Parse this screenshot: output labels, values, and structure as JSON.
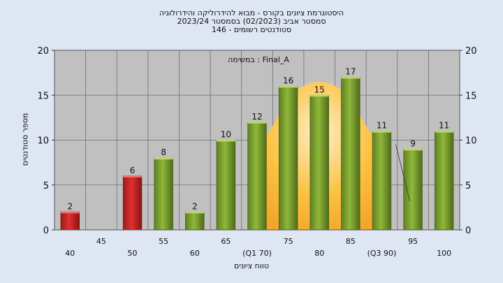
{
  "titles": {
    "line1": "היסטוגרמת ציונים בקורס - מבוא להידרוליקה והידרולוגיה",
    "line2": "2023/24 סמסטר אביב (02/2023) בסמסטר",
    "line3": "146 - סטודנטים רשומים"
  },
  "chart_data": {
    "type": "bar",
    "annotation": "במשימה : Final_A",
    "xlabel": "טווח ציונים",
    "ylabel": "מספר סטודנטים",
    "ylim": [
      0,
      20
    ],
    "yticks": [
      0,
      5,
      10,
      15,
      20
    ],
    "grid": true,
    "categories": [
      "40",
      "45",
      "50",
      "55",
      "60",
      "65",
      "70",
      "75",
      "80",
      "85",
      "90",
      "95",
      "100"
    ],
    "tick_labels": [
      "40",
      "45",
      "50",
      "55",
      "60",
      "65",
      "(Q1 70)",
      "75",
      "80",
      "85",
      "(Q3 90)",
      "95",
      "100"
    ],
    "values": [
      2,
      0,
      6,
      8,
      2,
      10,
      12,
      16,
      15,
      17,
      11,
      9,
      11
    ],
    "fail_categories": [
      "40",
      "45",
      "50"
    ],
    "colors": {
      "fail": "#e03030",
      "pass": "#8fb83a",
      "plot_bg": "#c0c0c0",
      "quartile_area": "#ffc23c",
      "page_bg": "#dde6f2"
    },
    "quartile_area": {
      "x": [
        "70",
        "80",
        "90"
      ],
      "y": [
        10,
        16.5,
        10
      ]
    }
  }
}
